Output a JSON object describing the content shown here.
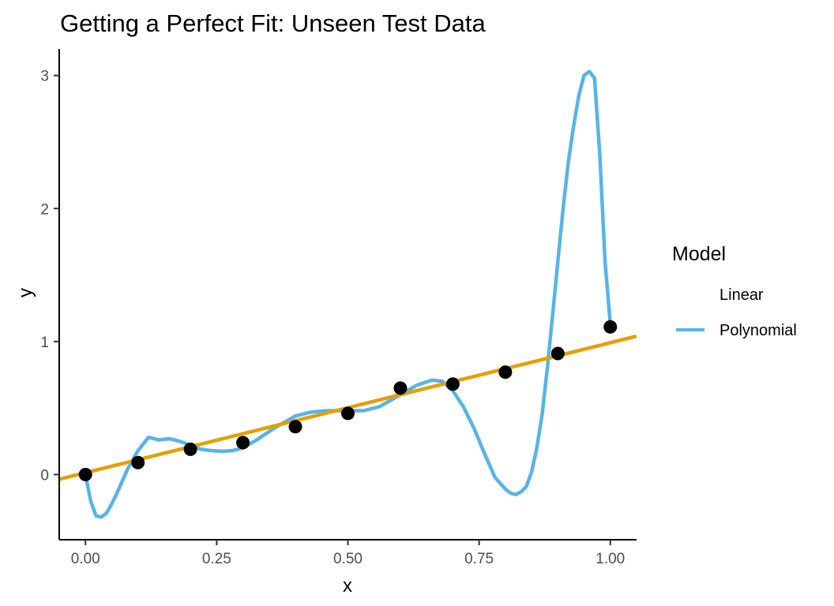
{
  "chart_data": {
    "type": "line",
    "title": "Getting a Perfect Fit: Unseen Test Data",
    "xlabel": "x",
    "ylabel": "y",
    "xlim": [
      -0.05,
      1.05
    ],
    "ylim": [
      -0.49,
      3.2
    ],
    "x_ticks": [
      0,
      0.25,
      0.5,
      0.75,
      1
    ],
    "x_tick_labels": [
      "0.00",
      "0.25",
      "0.50",
      "0.75",
      "1.00"
    ],
    "y_ticks": [
      0,
      1,
      2,
      3
    ],
    "y_tick_labels": [
      "0",
      "1",
      "2",
      "3"
    ],
    "grid": false,
    "legend": {
      "title": "Model",
      "position": "right",
      "entries": [
        "Linear",
        "Polynomial"
      ]
    },
    "points": {
      "x": [
        0.0,
        0.1,
        0.2,
        0.3,
        0.4,
        0.5,
        0.6,
        0.7,
        0.8,
        0.9,
        1.0
      ],
      "y": [
        0.0,
        0.09,
        0.19,
        0.24,
        0.36,
        0.46,
        0.65,
        0.68,
        0.77,
        0.91,
        1.11
      ],
      "color": "#000000"
    },
    "series": [
      {
        "name": "Linear",
        "color": "#E69F00",
        "x": [
          -0.05,
          1.05
        ],
        "y": [
          -0.035,
          1.04
        ]
      },
      {
        "name": "Polynomial",
        "color": "#56B4E9",
        "x": [
          0.0,
          0.01,
          0.02,
          0.03,
          0.04,
          0.05,
          0.06,
          0.08,
          0.1,
          0.12,
          0.14,
          0.16,
          0.18,
          0.2,
          0.22,
          0.24,
          0.26,
          0.28,
          0.3,
          0.33,
          0.36,
          0.4,
          0.43,
          0.46,
          0.5,
          0.53,
          0.56,
          0.6,
          0.63,
          0.66,
          0.68,
          0.7,
          0.72,
          0.74,
          0.76,
          0.78,
          0.8,
          0.81,
          0.82,
          0.83,
          0.84,
          0.85,
          0.86,
          0.87,
          0.88,
          0.89,
          0.9,
          0.91,
          0.92,
          0.93,
          0.94,
          0.95,
          0.96,
          0.97,
          0.98,
          0.99,
          1.0
        ],
        "y": [
          0.0,
          -0.2,
          -0.31,
          -0.32,
          -0.29,
          -0.22,
          -0.14,
          0.04,
          0.18,
          0.28,
          0.26,
          0.27,
          0.25,
          0.22,
          0.19,
          0.18,
          0.175,
          0.18,
          0.2,
          0.27,
          0.35,
          0.44,
          0.47,
          0.48,
          0.48,
          0.48,
          0.51,
          0.6,
          0.67,
          0.71,
          0.7,
          0.63,
          0.51,
          0.35,
          0.16,
          -0.02,
          -0.11,
          -0.14,
          -0.15,
          -0.13,
          -0.09,
          0.02,
          0.2,
          0.45,
          0.8,
          1.2,
          1.6,
          2.0,
          2.35,
          2.62,
          2.85,
          3.0,
          3.03,
          2.98,
          2.4,
          1.6,
          1.13
        ]
      }
    ]
  }
}
